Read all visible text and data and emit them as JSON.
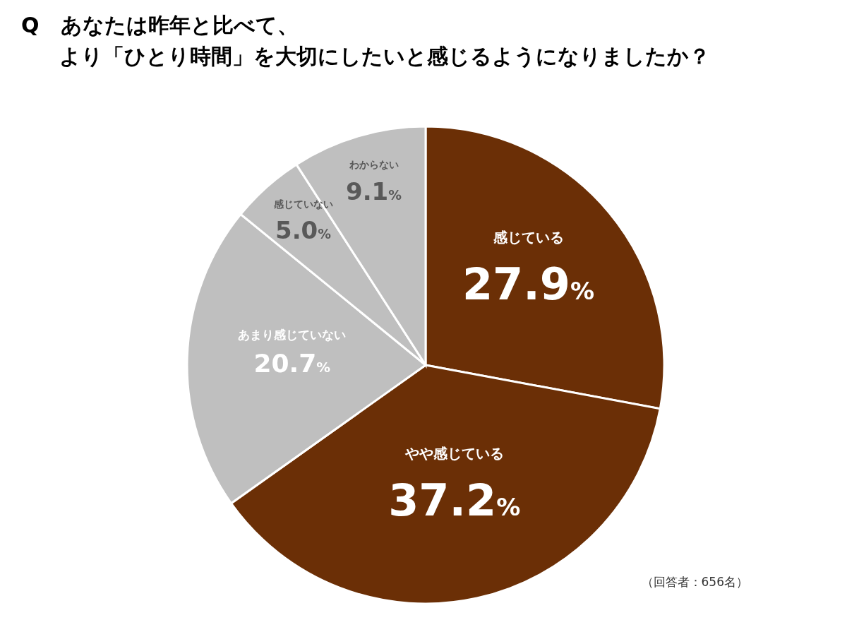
{
  "chart_data": {
    "type": "pie",
    "title": "Q　あなたは昨年と比べて、より「ひとり時間」を大切にしたいと感じるようになりましたか？",
    "categories": [
      "感じている",
      "やや感じている",
      "あまり感じていない",
      "感じていない",
      "わからない"
    ],
    "values": [
      27.9,
      37.2,
      20.7,
      5.0,
      9.1
    ],
    "colors": [
      "#6b2f06",
      "#6b2f06",
      "#bfbfbf",
      "#bfbfbf",
      "#bfbfbf"
    ],
    "value_labels": [
      "27.9%",
      "37.2%",
      "20.7%",
      "5.0%",
      "9.1%"
    ],
    "annotations": [
      "（回答者：656名）"
    ]
  }
}
